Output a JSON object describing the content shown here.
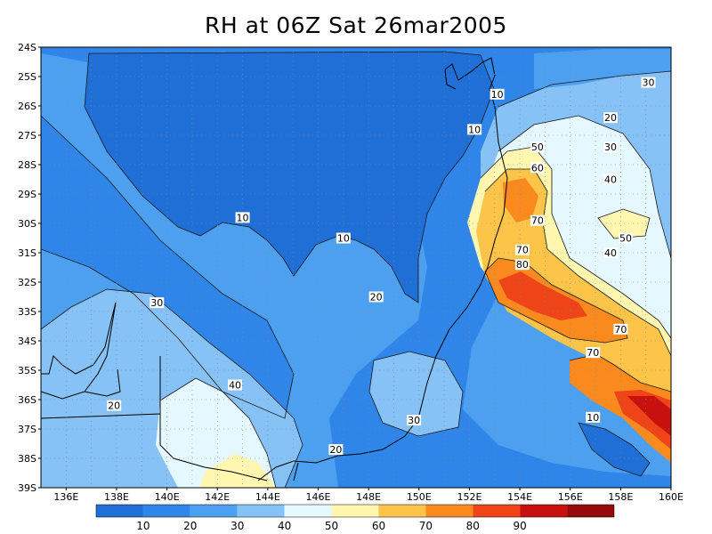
{
  "title": "RH at 06Z Sat 26mar2005",
  "palette": {
    "bins": [
      "#1f6fd6",
      "#2f86e8",
      "#4da0f0",
      "#86c2f6",
      "#e6f8ff",
      "#fff6b0",
      "#fcc448",
      "#fa8a1e",
      "#ee4418",
      "#c8100e",
      "#920a0a"
    ],
    "grid": "#7a8899",
    "coast": "#000000",
    "contour": "#1a1a1a"
  },
  "axes": {
    "lat_labels": [
      "24S",
      "25S",
      "26S",
      "27S",
      "28S",
      "29S",
      "30S",
      "31S",
      "32S",
      "33S",
      "34S",
      "35S",
      "36S",
      "37S",
      "38S",
      "39S"
    ],
    "lon_labels": [
      "136E",
      "138E",
      "140E",
      "142E",
      "144E",
      "146E",
      "148E",
      "150E",
      "152E",
      "154E",
      "156E",
      "158E",
      "160E"
    ]
  },
  "colorbar": {
    "ticks": [
      "10",
      "20",
      "30",
      "40",
      "50",
      "60",
      "70",
      "80",
      "90"
    ]
  },
  "contour_labels": [
    {
      "text": "10",
      "lon": 153.1,
      "lat": -25.6
    },
    {
      "text": "10",
      "lon": 152.2,
      "lat": -26.8
    },
    {
      "text": "10",
      "lon": 143.0,
      "lat": -29.8
    },
    {
      "text": "10",
      "lon": 147.0,
      "lat": -30.5
    },
    {
      "text": "20",
      "lon": 148.3,
      "lat": -32.5
    },
    {
      "text": "30",
      "lon": 139.6,
      "lat": -32.7
    },
    {
      "text": "40",
      "lon": 142.7,
      "lat": -35.5
    },
    {
      "text": "20",
      "lon": 137.9,
      "lat": -36.2
    },
    {
      "text": "20",
      "lon": 146.7,
      "lat": -37.7
    },
    {
      "text": "30",
      "lon": 149.8,
      "lat": -36.7
    },
    {
      "text": "50",
      "lon": 154.7,
      "lat": -27.4
    },
    {
      "text": "60",
      "lon": 154.7,
      "lat": -28.1
    },
    {
      "text": "70",
      "lon": 154.7,
      "lat": -29.9
    },
    {
      "text": "70",
      "lon": 154.1,
      "lat": -30.9
    },
    {
      "text": "80",
      "lon": 154.1,
      "lat": -31.4
    },
    {
      "text": "30",
      "lon": 159.1,
      "lat": -25.2
    },
    {
      "text": "20",
      "lon": 157.6,
      "lat": -26.4
    },
    {
      "text": "30",
      "lon": 157.6,
      "lat": -27.4
    },
    {
      "text": "40",
      "lon": 157.6,
      "lat": -28.5
    },
    {
      "text": "50",
      "lon": 158.2,
      "lat": -30.5
    },
    {
      "text": "40",
      "lon": 157.6,
      "lat": -31.0
    },
    {
      "text": "70",
      "lon": 158.0,
      "lat": -33.6
    },
    {
      "text": "70",
      "lon": 156.9,
      "lat": -34.4
    },
    {
      "text": "10",
      "lon": 156.9,
      "lat": -36.6
    }
  ]
}
